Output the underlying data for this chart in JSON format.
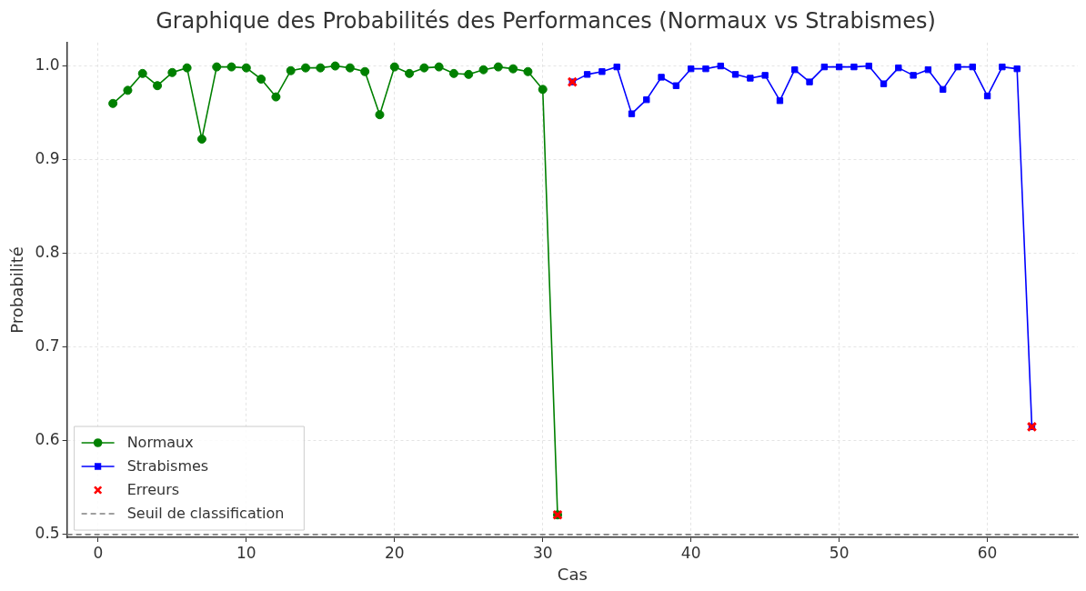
{
  "chart_data": {
    "type": "line",
    "title": "Graphique des Probabilités des Performances (Normaux vs Strabismes)",
    "xlabel": "Cas",
    "ylabel": "Probabilité",
    "xlim": [
      -2.1,
      66.1
    ],
    "xticks": [
      0,
      10,
      20,
      30,
      40,
      50,
      60
    ],
    "ylim": [
      0.497,
      1.025
    ],
    "yticks": [
      0.5,
      0.6,
      0.7,
      0.8,
      0.9,
      {
        "value": 1.0,
        "label": "1.0"
      }
    ],
    "grid": true,
    "legend": "bottom left",
    "line_style": "solid",
    "series": [
      {
        "name": "Normaux",
        "type": "line",
        "color": "#008000",
        "marker": "circle",
        "x": [
          1,
          2,
          3,
          4,
          5,
          6,
          7,
          8,
          9,
          10,
          11,
          12,
          13,
          14,
          15,
          16,
          17,
          18,
          19,
          20,
          21,
          22,
          23,
          24,
          25,
          26,
          27,
          28,
          29,
          30,
          31
        ],
        "values": [
          0.96,
          0.974,
          0.992,
          0.979,
          0.993,
          0.998,
          0.922,
          0.999,
          0.999,
          0.998,
          0.986,
          0.967,
          0.995,
          0.998,
          0.998,
          1.0,
          0.998,
          0.994,
          0.948,
          0.999,
          0.992,
          0.998,
          0.999,
          0.992,
          0.991,
          0.996,
          0.999,
          0.997,
          0.994,
          0.975,
          0.521
        ]
      },
      {
        "name": "Strabismes",
        "type": "line",
        "color": "#0000ff",
        "marker": "square",
        "x": [
          32,
          33,
          34,
          35,
          36,
          37,
          38,
          39,
          40,
          41,
          42,
          43,
          44,
          45,
          46,
          47,
          48,
          49,
          50,
          51,
          52,
          53,
          54,
          55,
          56,
          57,
          58,
          59,
          60,
          61,
          62,
          63
        ],
        "values": [
          0.983,
          0.991,
          0.994,
          0.999,
          0.949,
          0.964,
          0.988,
          0.979,
          0.997,
          0.997,
          1.0,
          0.991,
          0.987,
          0.99,
          0.963,
          0.996,
          0.983,
          0.999,
          0.999,
          0.999,
          1.0,
          0.981,
          0.998,
          0.99,
          0.996,
          0.975,
          0.999,
          0.999,
          0.968,
          0.999,
          0.997,
          0.615
        ]
      },
      {
        "name": "Erreurs",
        "type": "scatter",
        "color": "#ff0000",
        "marker": "cross",
        "x": [
          31,
          32,
          63
        ],
        "values": [
          0.521,
          0.983,
          0.615
        ]
      }
    ],
    "ref_lines": [
      {
        "axis": "y",
        "value": 0.5,
        "label": "Seuil de classification",
        "color": "#808080",
        "line_style": "dashed"
      }
    ]
  }
}
